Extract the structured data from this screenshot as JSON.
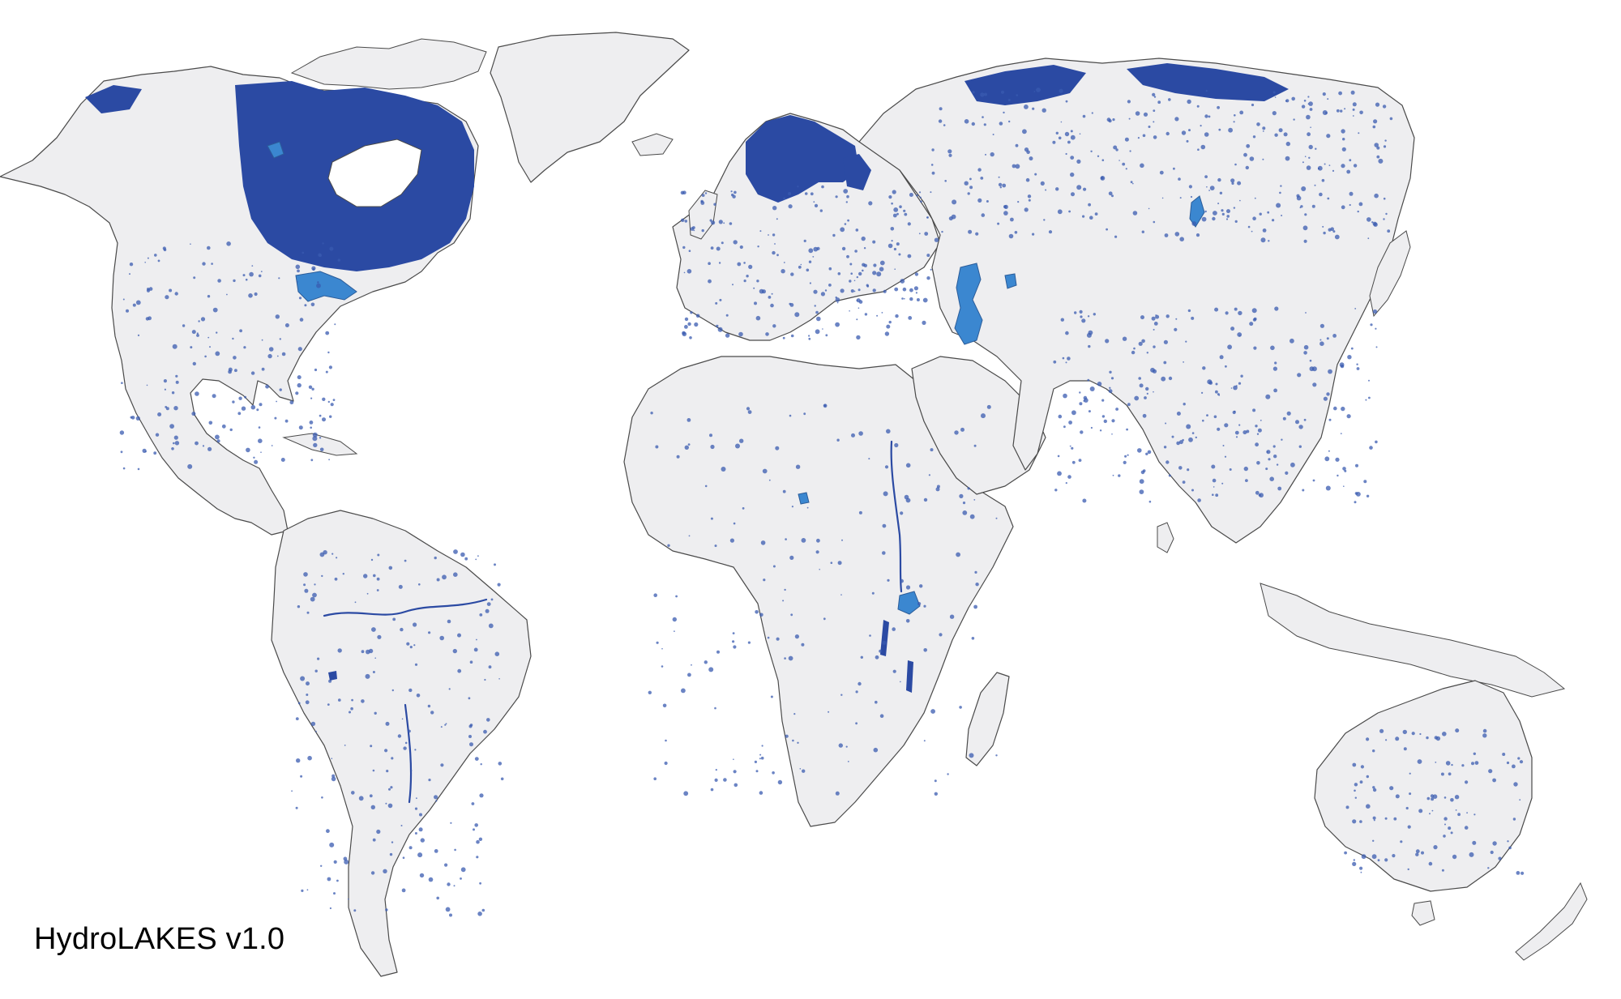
{
  "map": {
    "caption": "HydroLAKES v1.0",
    "colors": {
      "background": "#ffffff",
      "land": "#eeeef0",
      "coastline": "#4a4a4a",
      "lakes_small_dense": "#2b4aa3",
      "lakes_large": "#3b87d0"
    }
  }
}
